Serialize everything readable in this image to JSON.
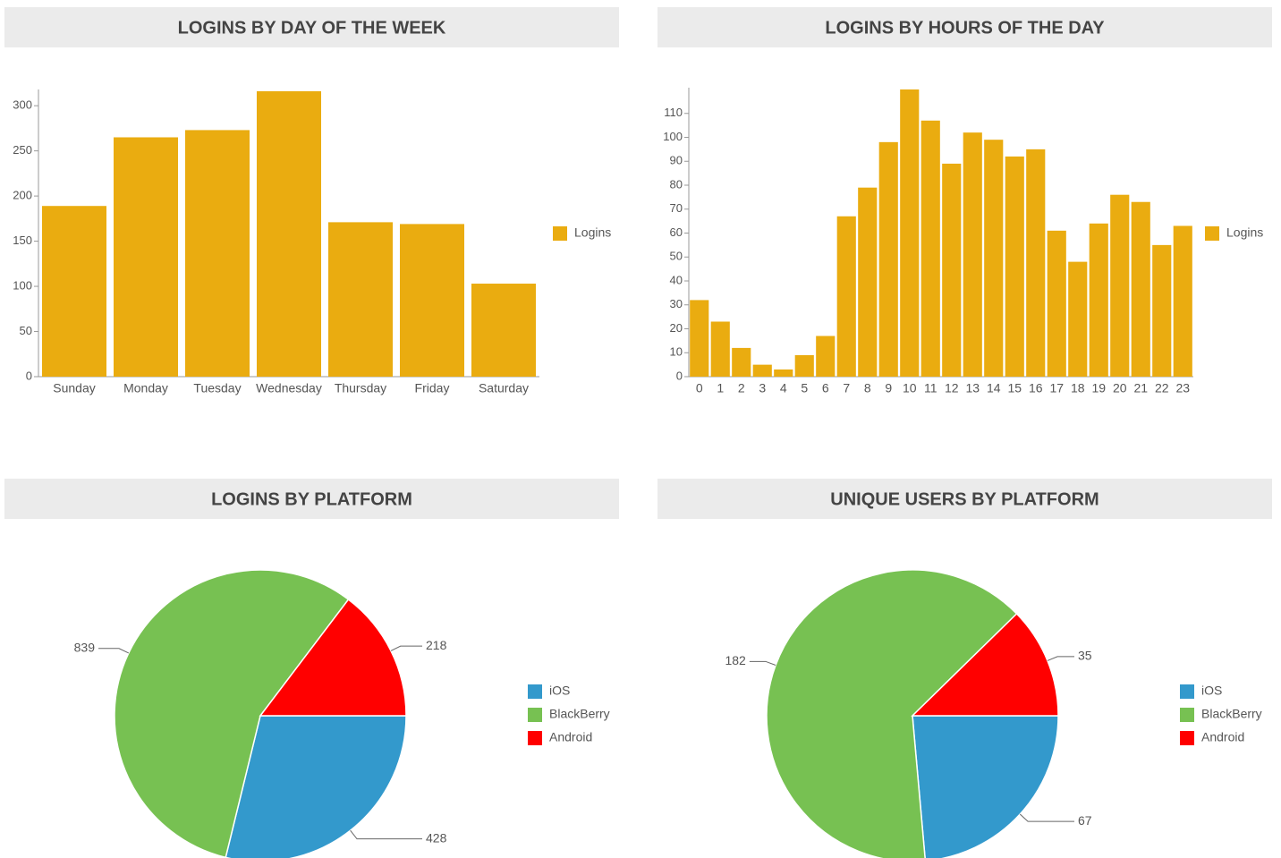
{
  "chart_data": [
    {
      "type": "bar",
      "title": "LOGINS BY DAY OF THE WEEK",
      "categories": [
        "Sunday",
        "Monday",
        "Tuesday",
        "Wednesday",
        "Thursday",
        "Friday",
        "Saturday"
      ],
      "series": [
        {
          "name": "Logins",
          "color": "#eaac10",
          "values": [
            189,
            265,
            273,
            316,
            171,
            169,
            103
          ]
        }
      ],
      "ylim": [
        0,
        316
      ],
      "yticks": [
        0,
        50,
        100,
        150,
        200,
        250,
        300
      ],
      "grid": false,
      "legend": "right"
    },
    {
      "type": "bar",
      "title": "LOGINS BY HOURS OF THE DAY",
      "categories": [
        "0",
        "1",
        "2",
        "3",
        "4",
        "5",
        "6",
        "7",
        "8",
        "9",
        "10",
        "11",
        "12",
        "13",
        "14",
        "15",
        "16",
        "17",
        "18",
        "19",
        "20",
        "21",
        "22",
        "23"
      ],
      "series": [
        {
          "name": "Logins",
          "color": "#eaac10",
          "values": [
            32,
            23,
            12,
            5,
            3,
            9,
            17,
            67,
            79,
            98,
            120,
            107,
            89,
            102,
            99,
            92,
            95,
            61,
            48,
            64,
            76,
            73,
            55,
            63
          ]
        }
      ],
      "ylim": [
        0,
        120
      ],
      "yticks": [
        0,
        10,
        20,
        30,
        40,
        50,
        60,
        70,
        80,
        90,
        100,
        110
      ],
      "grid": false,
      "legend": "right"
    },
    {
      "type": "pie",
      "title": "LOGINS BY PLATFORM",
      "categories": [
        "iOS",
        "BlackBerry",
        "Android"
      ],
      "values": [
        428,
        839,
        218
      ],
      "colors": [
        "#3399cc",
        "#77c152",
        "#ff0000"
      ],
      "legend": "right"
    },
    {
      "type": "pie",
      "title": "UNIQUE USERS BY PLATFORM",
      "categories": [
        "iOS",
        "BlackBerry",
        "Android"
      ],
      "values": [
        67,
        182,
        35
      ],
      "colors": [
        "#3399cc",
        "#77c152",
        "#ff0000"
      ],
      "legend": "right"
    }
  ]
}
